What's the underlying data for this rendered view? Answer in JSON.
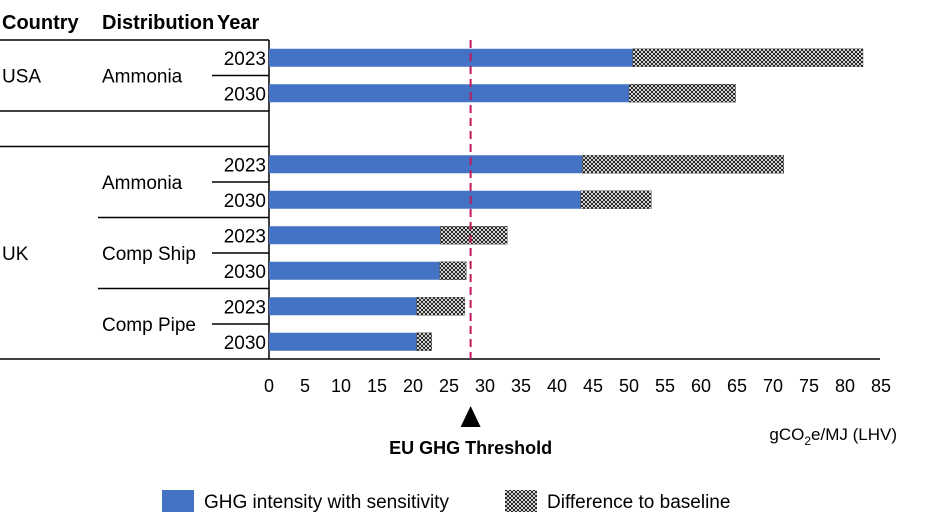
{
  "chart_data": {
    "type": "bar",
    "orientation": "horizontal",
    "headers": {
      "country": "Country",
      "distribution": "Distribution",
      "year": "Year"
    },
    "countries": [
      {
        "label": "USA",
        "groups": [
          {
            "label": "Ammonia",
            "rows": [
              {
                "year": "2023",
                "sensitivity": 50.5,
                "difference": 32.0
              },
              {
                "year": "2030",
                "sensitivity": 50.0,
                "difference": 14.8
              }
            ]
          }
        ]
      },
      {
        "label": "UK",
        "groups": [
          {
            "label": "Ammonia",
            "rows": [
              {
                "year": "2023",
                "sensitivity": 43.5,
                "difference": 28.0
              },
              {
                "year": "2030",
                "sensitivity": 43.3,
                "difference": 9.8
              }
            ]
          },
          {
            "label": "Comp Ship",
            "rows": [
              {
                "year": "2023",
                "sensitivity": 23.8,
                "difference": 9.3
              },
              {
                "year": "2030",
                "sensitivity": 23.7,
                "difference": 3.7
              }
            ]
          },
          {
            "label": "Comp Pipe",
            "rows": [
              {
                "year": "2023",
                "sensitivity": 20.5,
                "difference": 6.7
              },
              {
                "year": "2030",
                "sensitivity": 20.5,
                "difference": 2.1
              }
            ]
          }
        ]
      }
    ],
    "series": [
      {
        "name": "GHG intensity with sensitivity",
        "key": "sensitivity",
        "color": "#4472C4"
      },
      {
        "name": "Difference to baseline",
        "key": "difference",
        "pattern": "crosshatch"
      }
    ],
    "x_ticks": [
      "0",
      "5",
      "10",
      "15",
      "20",
      "25",
      "30",
      "35",
      "40",
      "45",
      "50",
      "55",
      "60",
      "65",
      "70",
      "75",
      "80",
      "85"
    ],
    "xlim": [
      0,
      85
    ],
    "xlabel_prefix": "gCO",
    "xlabel_sub": "2",
    "xlabel_suffix": "e/MJ  (LHV)",
    "threshold": {
      "value": 28,
      "label": "EU GHG Threshold",
      "color": "#C0185A"
    }
  }
}
